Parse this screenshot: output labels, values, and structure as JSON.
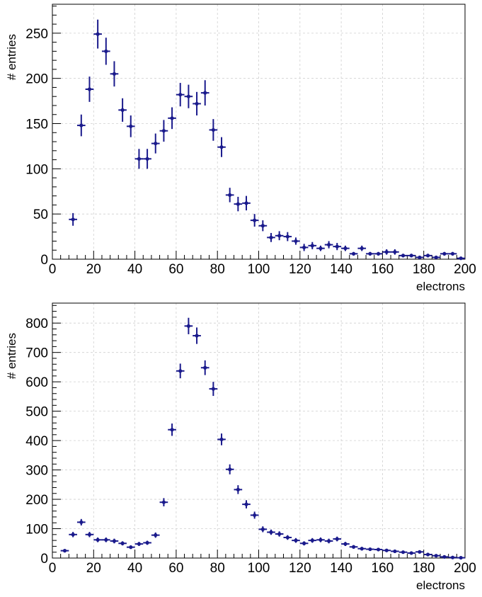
{
  "chart_data": [
    {
      "type": "scatter",
      "title": "",
      "xlabel": "electrons",
      "ylabel": "# entries",
      "xlim": [
        0,
        200
      ],
      "ylim": [
        0,
        282
      ],
      "xticks": [
        0,
        20,
        40,
        60,
        80,
        100,
        120,
        140,
        160,
        180,
        200
      ],
      "yticks": [
        0,
        50,
        100,
        150,
        200,
        250
      ],
      "grid": true,
      "bin_width": 4,
      "series": [
        {
          "color": "#1a1a8c",
          "x": [
            10,
            14,
            18,
            22,
            26,
            30,
            34,
            38,
            42,
            46,
            50,
            54,
            58,
            62,
            66,
            70,
            74,
            78,
            82,
            86,
            90,
            94,
            98,
            102,
            106,
            110,
            114,
            118,
            122,
            126,
            130,
            134,
            138,
            142,
            146,
            150,
            154,
            158,
            162,
            166,
            170,
            174,
            178,
            182,
            186,
            190,
            194,
            198
          ],
          "y": [
            44,
            148,
            188,
            249,
            230,
            205,
            165,
            147,
            111,
            111,
            128,
            142,
            156,
            182,
            180,
            172,
            184,
            143,
            124,
            71,
            61,
            62,
            43,
            37,
            24,
            26,
            25,
            20,
            13,
            15,
            12,
            16,
            14,
            12,
            6,
            12,
            6,
            6,
            8,
            8,
            4,
            4,
            2,
            4,
            2,
            6,
            6,
            1
          ],
          "yerr": [
            7,
            12,
            14,
            16,
            15,
            14,
            13,
            12,
            11,
            11,
            11,
            12,
            12,
            13,
            13,
            13,
            14,
            12,
            11,
            8,
            8,
            8,
            7,
            6,
            5,
            5,
            5,
            4,
            4,
            4,
            3,
            4,
            4,
            3,
            2,
            3,
            2,
            2,
            3,
            3,
            2,
            2,
            1,
            2,
            1,
            2,
            2,
            1
          ]
        }
      ]
    },
    {
      "type": "scatter",
      "title": "",
      "xlabel": "electrons",
      "ylabel": "# entries",
      "xlim": [
        0,
        200
      ],
      "ylim": [
        0,
        868
      ],
      "xticks": [
        0,
        20,
        40,
        60,
        80,
        100,
        120,
        140,
        160,
        180,
        200
      ],
      "yticks": [
        0,
        100,
        200,
        300,
        400,
        500,
        600,
        700,
        800
      ],
      "grid": true,
      "bin_width": 4,
      "series": [
        {
          "color": "#1a1a8c",
          "x": [
            6,
            10,
            14,
            18,
            22,
            26,
            30,
            34,
            38,
            42,
            46,
            50,
            54,
            58,
            62,
            66,
            70,
            74,
            78,
            82,
            86,
            90,
            94,
            98,
            102,
            106,
            110,
            114,
            118,
            122,
            126,
            130,
            134,
            138,
            142,
            146,
            150,
            154,
            158,
            162,
            166,
            170,
            174,
            178,
            182,
            186,
            190,
            194,
            198
          ],
          "y": [
            25,
            80,
            122,
            80,
            62,
            62,
            58,
            50,
            37,
            48,
            52,
            78,
            190,
            437,
            637,
            790,
            757,
            648,
            576,
            404,
            302,
            233,
            183,
            146,
            98,
            88,
            82,
            70,
            60,
            50,
            60,
            62,
            58,
            65,
            48,
            38,
            32,
            30,
            29,
            26,
            23,
            20,
            17,
            21,
            12,
            8,
            4,
            2,
            1
          ],
          "yerr": [
            5,
            9,
            11,
            9,
            8,
            8,
            8,
            7,
            6,
            7,
            7,
            9,
            14,
            21,
            25,
            28,
            28,
            25,
            24,
            20,
            17,
            15,
            14,
            12,
            10,
            9,
            9,
            8,
            8,
            7,
            8,
            8,
            8,
            8,
            7,
            6,
            6,
            5,
            5,
            5,
            5,
            4,
            4,
            5,
            3,
            3,
            2,
            1,
            1
          ]
        }
      ]
    }
  ]
}
